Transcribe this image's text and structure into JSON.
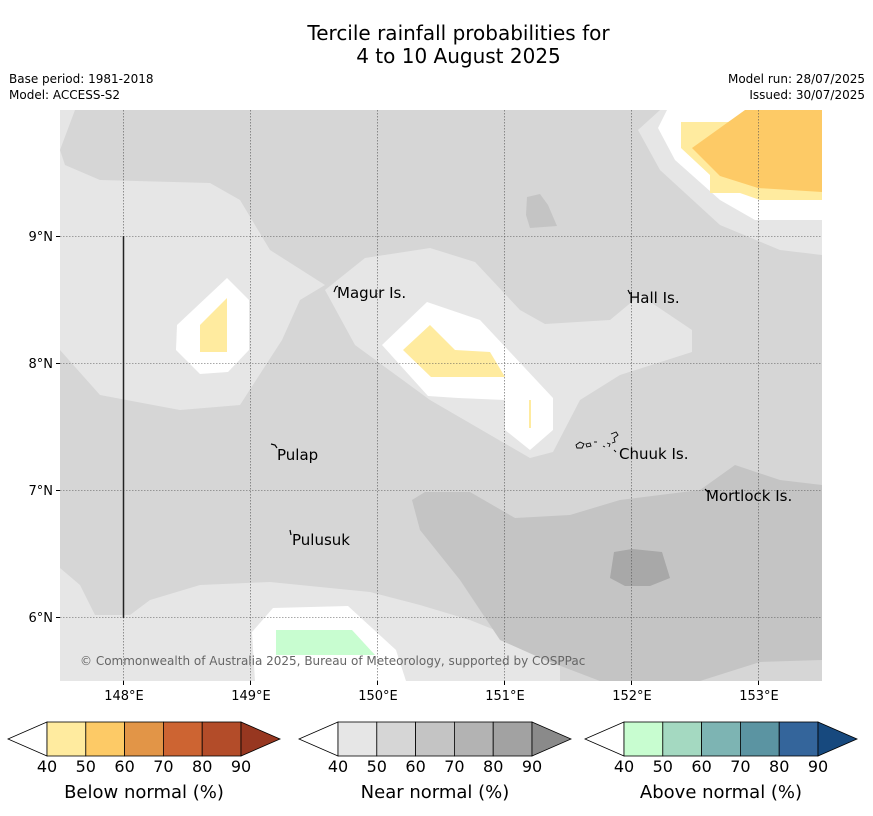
{
  "title_line1": "Tercile rainfall probabilities for",
  "title_line2": "4 to 10 August 2025",
  "meta": {
    "base_period": "Base period: 1981-2018",
    "model": "Model: ACCESS-S2",
    "model_run": "Model run: 28/07/2025",
    "issued": "Issued: 30/07/2025"
  },
  "map": {
    "lon_ticks": [
      "148°E",
      "149°E",
      "150°E",
      "151°E",
      "152°E",
      "153°E"
    ],
    "lat_ticks": [
      "9°N",
      "8°N",
      "7°N",
      "6°N"
    ],
    "places": [
      "Magur Is.",
      "Hall Is.",
      "Pulap",
      "Chuuk Is.",
      "Mortlock Is.",
      "Pulusuk"
    ],
    "copyright": "© Commonwealth of Australia 2025, Bureau of Meteorology, supported by COSPPac"
  },
  "colorbars": [
    {
      "label": "Below normal (%)",
      "ticks": [
        "40",
        "50",
        "60",
        "70",
        "80",
        "90"
      ],
      "colors": [
        "#ffffff",
        "#ffeb9f",
        "#fdca66",
        "#e29547",
        "#cd6432",
        "#b34c29",
        "#973720"
      ]
    },
    {
      "label": "Near normal (%)",
      "ticks": [
        "40",
        "50",
        "60",
        "70",
        "80",
        "90"
      ],
      "colors": [
        "#ffffff",
        "#e6e6e6",
        "#d6d6d6",
        "#c4c4c4",
        "#b3b3b3",
        "#a2a2a2",
        "#8a8a8a"
      ]
    },
    {
      "label": "Above normal (%)",
      "ticks": [
        "40",
        "50",
        "60",
        "70",
        "80",
        "90"
      ],
      "colors": [
        "#ffffff",
        "#c8fdd0",
        "#a4d9c1",
        "#7db4b3",
        "#5b94a2",
        "#34659b",
        "#17497e"
      ]
    }
  ]
}
